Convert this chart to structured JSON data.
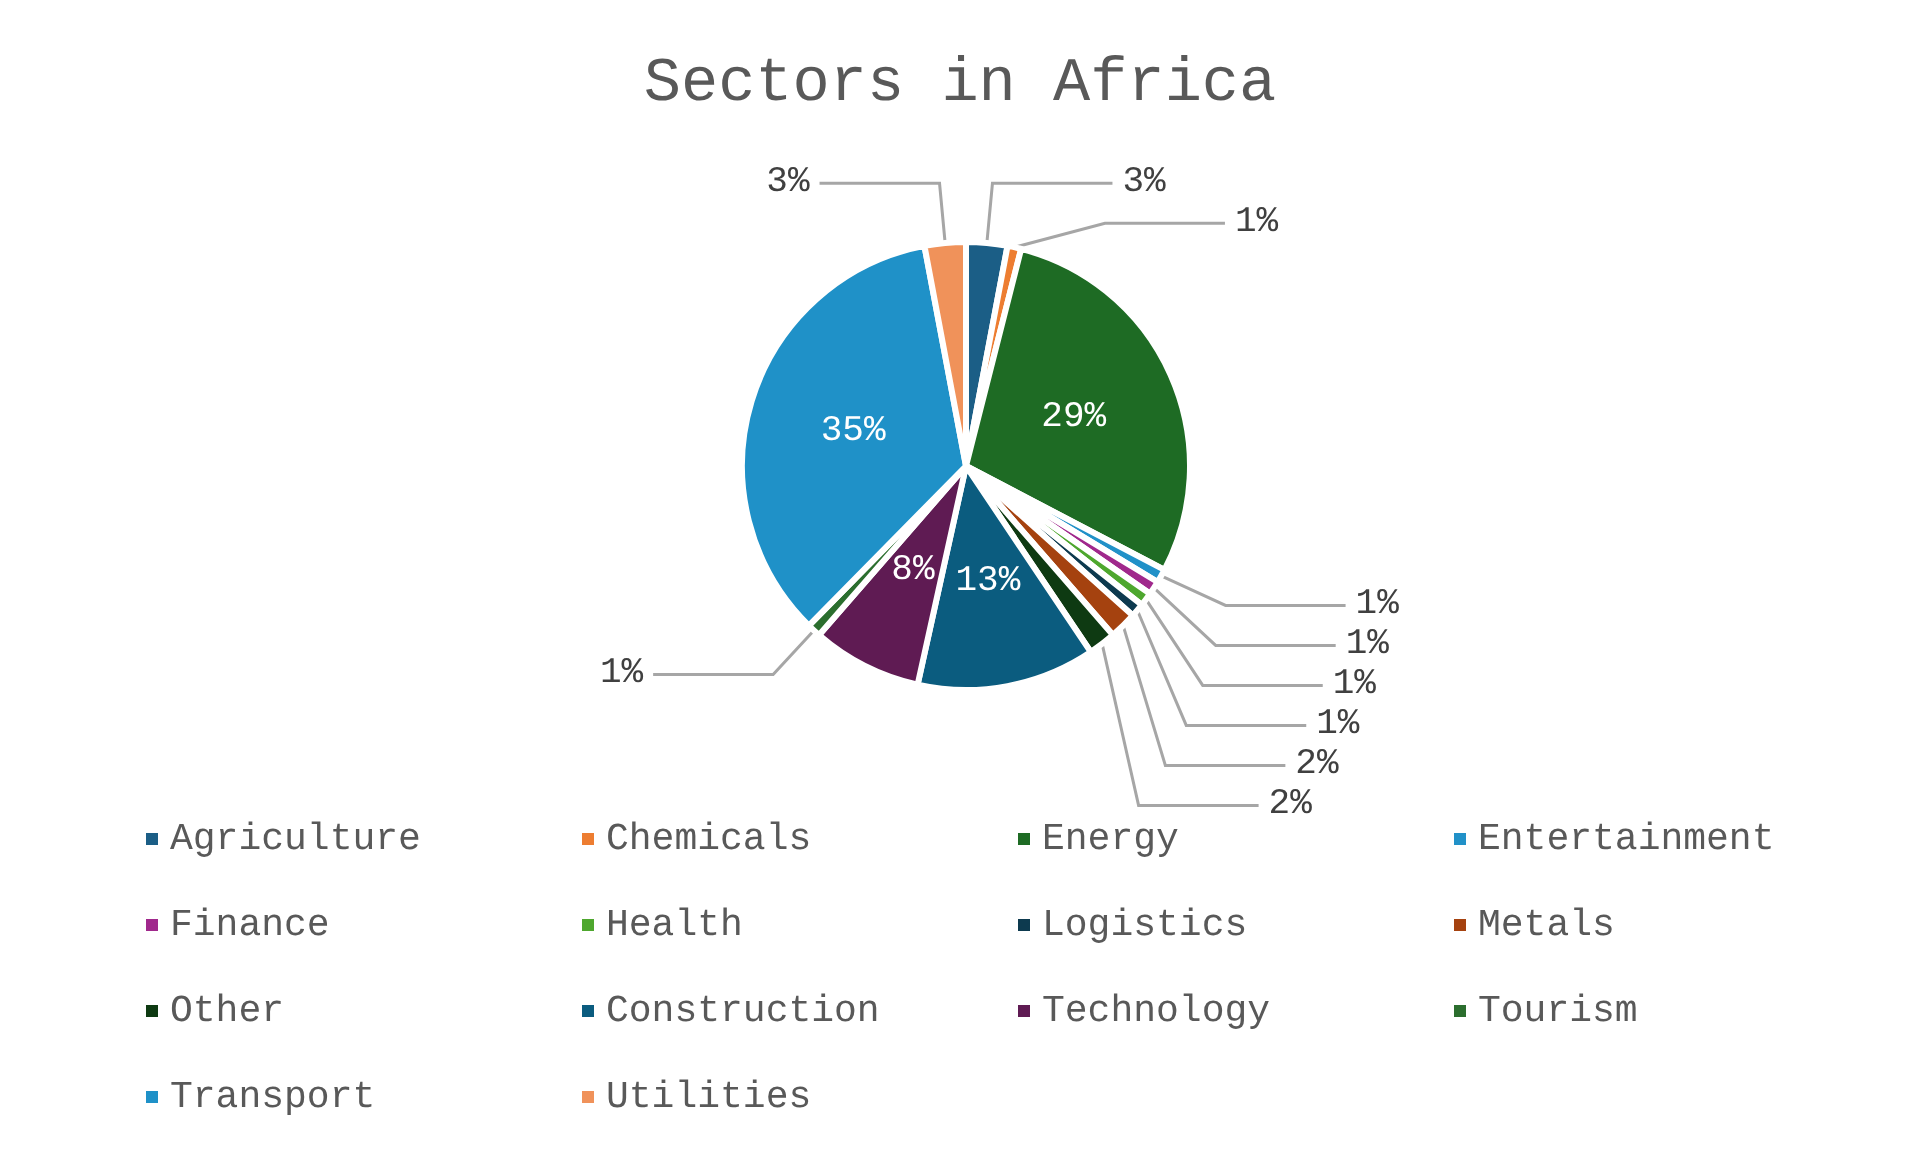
{
  "chart_data": {
    "type": "pie",
    "title": "Sectors in Africa",
    "categories": [
      "Agriculture",
      "Chemicals",
      "Energy",
      "Entertainment",
      "Finance",
      "Health",
      "Logistics",
      "Metals",
      "Other",
      "Construction",
      "Technology",
      "Tourism",
      "Transport",
      "Utilities"
    ],
    "values": [
      3,
      1,
      29,
      1,
      1,
      1,
      1,
      2,
      2,
      13,
      8,
      1,
      35,
      3
    ],
    "value_labels": [
      "3%",
      "1%",
      "29%",
      "1%",
      "1%",
      "1%",
      "1%",
      "2%",
      "2%",
      "13%",
      "8%",
      "1%",
      "35%",
      "3%"
    ],
    "colors": [
      "#1b5e86",
      "#ed7d31",
      "#1e6b24",
      "#2191c8",
      "#a0288c",
      "#4ea72e",
      "#0d3a4f",
      "#a5420f",
      "#0e3a12",
      "#0b5c7f",
      "#5f1b53",
      "#2b6e2e",
      "#1f91c8",
      "#f0925a"
    ],
    "legend": "bottom"
  }
}
